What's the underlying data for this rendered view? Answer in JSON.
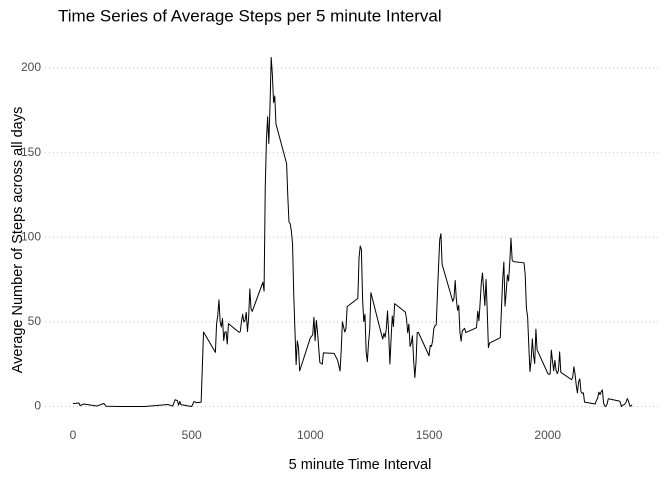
{
  "chart_data": {
    "type": "line",
    "title": "Time Series of Average Steps per 5 minute Interval",
    "x_label": "5 minute Time Interval",
    "y_label": "Average Number of Steps across all days",
    "xlim": [
      -117.75,
      2472.75
    ],
    "ylim": [
      -10.31,
      216.51
    ],
    "xticks": [
      0,
      500,
      1000,
      1500,
      2000
    ],
    "yticks": [
      0,
      50,
      100,
      150,
      200
    ],
    "grid": true,
    "series": [
      {
        "color": "#000000",
        "x": [
          0,
          25,
          30,
          45,
          100,
          130,
          140,
          200,
          230,
          300,
          340,
          400,
          420,
          430,
          440,
          445,
          450,
          455,
          500,
          510,
          520,
          540,
          550,
          600,
          605,
          610,
          615,
          620,
          625,
          630,
          635,
          640,
          645,
          650,
          655,
          700,
          705,
          710,
          715,
          720,
          725,
          730,
          735,
          740,
          745,
          750,
          755,
          800,
          805,
          810,
          815,
          820,
          825,
          830,
          835,
          840,
          845,
          850,
          855,
          900,
          905,
          910,
          915,
          920,
          925,
          930,
          935,
          940,
          945,
          950,
          955,
          1000,
          1010,
          1015,
          1020,
          1025,
          1030,
          1040,
          1050,
          1055,
          1100,
          1115,
          1125,
          1130,
          1135,
          1145,
          1150,
          1155,
          1200,
          1205,
          1210,
          1215,
          1220,
          1225,
          1230,
          1235,
          1240,
          1245,
          1250,
          1255,
          1300,
          1305,
          1310,
          1315,
          1320,
          1325,
          1330,
          1335,
          1340,
          1345,
          1350,
          1355,
          1400,
          1405,
          1410,
          1415,
          1420,
          1425,
          1430,
          1435,
          1440,
          1445,
          1450,
          1455,
          1500,
          1505,
          1510,
          1515,
          1520,
          1525,
          1530,
          1535,
          1540,
          1545,
          1550,
          1555,
          1600,
          1605,
          1610,
          1615,
          1620,
          1625,
          1630,
          1635,
          1640,
          1645,
          1650,
          1655,
          1700,
          1705,
          1710,
          1715,
          1720,
          1725,
          1730,
          1735,
          1740,
          1745,
          1750,
          1755,
          1800,
          1805,
          1810,
          1815,
          1820,
          1825,
          1830,
          1835,
          1840,
          1845,
          1850,
          1855,
          1900,
          1905,
          1910,
          1915,
          1920,
          1925,
          1930,
          1935,
          1940,
          1945,
          1950,
          1955,
          2000,
          2005,
          2010,
          2015,
          2020,
          2025,
          2030,
          2035,
          2040,
          2045,
          2050,
          2055,
          2100,
          2105,
          2110,
          2115,
          2120,
          2125,
          2130,
          2135,
          2140,
          2145,
          2150,
          2155,
          2200,
          2205,
          2210,
          2215,
          2220,
          2225,
          2230,
          2235,
          2240,
          2245,
          2250,
          2255,
          2300,
          2305,
          2310,
          2315,
          2320,
          2325,
          2330,
          2335,
          2340,
          2345,
          2350,
          2355
        ],
        "values": [
          1.7,
          2.1,
          0.5,
          1.5,
          0.3,
          1.8,
          0.2,
          0,
          0,
          0,
          0.5,
          1.2,
          0.3,
          4,
          3.5,
          0.8,
          3,
          1.1,
          0,
          3,
          2.3,
          2.6,
          44,
          32,
          49,
          53.8,
          63,
          50,
          47,
          52,
          39,
          44,
          44.2,
          37,
          49,
          43.8,
          44.4,
          50.5,
          54.5,
          49.9,
          51,
          55.7,
          44.3,
          52.3,
          69.5,
          57.8,
          56.2,
          73.4,
          68.2,
          129.4,
          157.5,
          171.2,
          155.4,
          177.3,
          206.2,
          195.9,
          179.6,
          183.4,
          167,
          143.5,
          124,
          109,
          108,
          103.6,
          95.9,
          66.2,
          45.2,
          24.8,
          38.8,
          34.98,
          21.06,
          40.6,
          42.4,
          52.7,
          38.9,
          50.8,
          44.3,
          26,
          25,
          31.7,
          31.4,
          27.3,
          21,
          33.4,
          50,
          44,
          46,
          59,
          63.9,
          87.8,
          94.8,
          92.8,
          63.4,
          50.2,
          54.5,
          32.4,
          26.5,
          37.7,
          45,
          67.3,
          42.3,
          39.9,
          43.3,
          40.98,
          46.2,
          56.4,
          42.8,
          25.1,
          39.96,
          53.5,
          47.3,
          60.8,
          55.8,
          51.96,
          43.6,
          48.7,
          35.5,
          37.5,
          41.8,
          27.5,
          17.1,
          26.1,
          43.6,
          43.8,
          30,
          36.1,
          35.5,
          38.8,
          45.96,
          47.75,
          48.1,
          65.3,
          82.9,
          98.7,
          102.1,
          84,
          62.1,
          64.1,
          74.5,
          63.2,
          56.9,
          59.8,
          43.9,
          38.6,
          44.7,
          45.5,
          46.2,
          43.7,
          46.6,
          56.3,
          50.7,
          61.2,
          72.7,
          78.9,
          68.9,
          59.7,
          75.1,
          56.5,
          34.8,
          37.5,
          40.7,
          58,
          74.7,
          85.3,
          59.3,
          67.8,
          77.7,
          74.2,
          85.3,
          99.5,
          86.6,
          85.6,
          84.9,
          77.8,
          58,
          53.4,
          36.3,
          20.7,
          27.4,
          40,
          30.2,
          25.5,
          45.7,
          33.5,
          19.6,
          19,
          19.3,
          33.3,
          26.8,
          21.2,
          27.3,
          21.3,
          19.5,
          21.3,
          32.3,
          20.2,
          15.9,
          17.2,
          23.5,
          19.2,
          12.5,
          8,
          14.7,
          16.3,
          8.7,
          7.8,
          8.1,
          2.6,
          1.5,
          3.7,
          4.8,
          8.5,
          7.1,
          8.7,
          9.8,
          2.2,
          0.3,
          0.1,
          1.6,
          4.6,
          3.3,
          2.8,
          0,
          0.8,
          1,
          1.6,
          2.6,
          4.7,
          3.3,
          0.6,
          0.2,
          1.1
        ]
      }
    ]
  }
}
